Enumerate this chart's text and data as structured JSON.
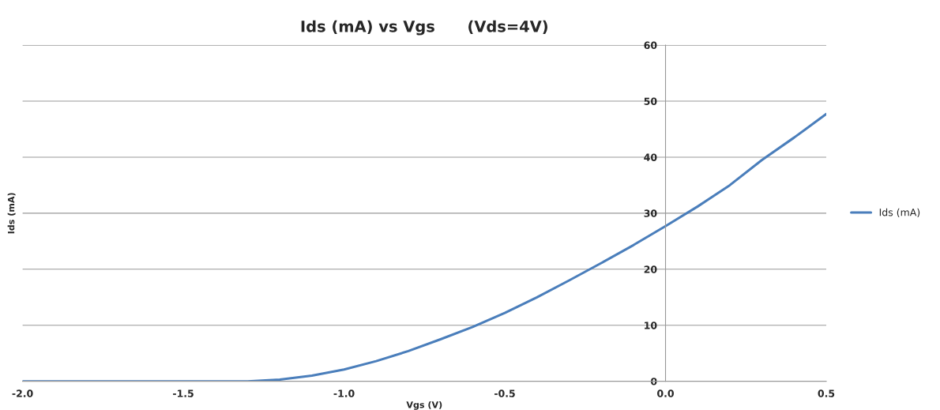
{
  "chart_data": {
    "type": "line",
    "title": "Ids (mA) vs Vgs      (Vds=4V)",
    "xlabel": "Vgs (V)",
    "ylabel": "Ids (mA)",
    "x": [
      -2.0,
      -1.5,
      -1.3,
      -1.2,
      -1.1,
      -1.0,
      -0.9,
      -0.8,
      -0.7,
      -0.6,
      -0.5,
      -0.4,
      -0.3,
      -0.2,
      -0.1,
      0.0,
      0.1,
      0.2,
      0.3,
      0.4,
      0.5
    ],
    "series": [
      {
        "name": "Ids (mA)",
        "color": "#4a7ebb",
        "values": [
          0,
          0,
          0,
          0.3,
          1.0,
          2.1,
          3.6,
          5.4,
          7.5,
          9.7,
          12.2,
          15.0,
          18.0,
          21.1,
          24.3,
          27.7,
          31.2,
          35.0,
          39.5,
          43.5,
          47.7
        ]
      }
    ],
    "xlim": [
      -2.0,
      0.5
    ],
    "xticks": [
      {
        "value": -2.0,
        "label": "-2.0"
      },
      {
        "value": -1.5,
        "label": "-1.5"
      },
      {
        "value": -1.0,
        "label": "-1.0"
      },
      {
        "value": -0.5,
        "label": "-0.5"
      },
      {
        "value": 0.0,
        "label": "0.0"
      },
      {
        "value": 0.5,
        "label": "0.5"
      }
    ],
    "ylim": [
      0,
      60
    ],
    "yticks": [
      0,
      10,
      20,
      30,
      40,
      50,
      60
    ],
    "grid": "y",
    "legend": "right",
    "marker": "none",
    "line_style": "solid"
  }
}
